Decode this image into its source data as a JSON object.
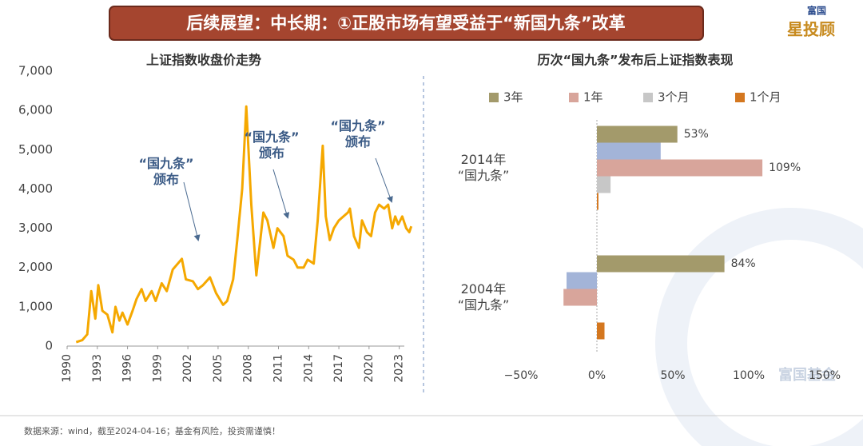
{
  "header": {
    "title": "后续展望：中长期：①正股市场有望受益于“新国九条”改革"
  },
  "logo": {
    "top": "富国",
    "main": "星投顾",
    "watermark": "富国基金"
  },
  "footer": "数据来源：wind，截至2024-04-16；基金有风险，投资需谨慎！",
  "chart_data": [
    {
      "type": "line",
      "title": "上证指数收盘价走势",
      "color": "#f5a800",
      "x": [
        1990.9,
        1991.5,
        1992.0,
        1992.4,
        1992.8,
        1993.1,
        1993.5,
        1994.0,
        1994.5,
        1994.8,
        1995.2,
        1995.5,
        1996.0,
        1996.5,
        1996.9,
        1997.4,
        1997.8,
        1998.4,
        1998.8,
        1999.4,
        1999.9,
        2000.5,
        2001.4,
        2001.8,
        2002.5,
        2003.0,
        2003.5,
        2004.2,
        2004.8,
        2005.5,
        2005.9,
        2006.5,
        2006.9,
        2007.4,
        2007.8,
        2008.3,
        2008.8,
        2009.5,
        2009.9,
        2010.5,
        2010.9,
        2011.5,
        2011.9,
        2012.5,
        2012.9,
        2013.5,
        2013.9,
        2014.5,
        2014.9,
        2015.4,
        2015.7,
        2016.1,
        2016.5,
        2017.0,
        2017.9,
        2018.1,
        2018.5,
        2019.0,
        2019.3,
        2019.8,
        2020.2,
        2020.6,
        2021.0,
        2021.5,
        2021.9,
        2022.3,
        2022.6,
        2022.9,
        2023.3,
        2023.7,
        2024.0,
        2024.2
      ],
      "values": [
        100,
        150,
        300,
        1400,
        700,
        1550,
        900,
        800,
        350,
        1000,
        650,
        850,
        550,
        900,
        1200,
        1450,
        1150,
        1400,
        1150,
        1600,
        1400,
        1950,
        2220,
        1700,
        1650,
        1450,
        1550,
        1750,
        1350,
        1050,
        1150,
        1700,
        2700,
        4000,
        6100,
        3600,
        1800,
        3400,
        3200,
        2500,
        3000,
        2800,
        2300,
        2200,
        2000,
        2000,
        2200,
        2100,
        3200,
        5100,
        3300,
        2700,
        3000,
        3200,
        3400,
        3500,
        2800,
        2500,
        3200,
        2900,
        2800,
        3400,
        3600,
        3500,
        3600,
        3000,
        3300,
        3100,
        3300,
        3000,
        2900,
        3050
      ],
      "xlim": [
        1990,
        2024.3
      ],
      "xticks": [
        1990,
        1993,
        1996,
        1999,
        2002,
        2005,
        2008,
        2011,
        2014,
        2017,
        2020,
        2023
      ],
      "ylim": [
        0,
        7000
      ],
      "yticks": [
        0,
        {
          "value": 1000,
          "label": "1,000"
        },
        {
          "value": 2000,
          "label": "2,000"
        },
        {
          "value": 3000,
          "label": "3,000"
        },
        {
          "value": 4000,
          "label": "4,000"
        },
        {
          "value": 5000,
          "label": "5,000"
        },
        {
          "value": 6000,
          "label": "6,000"
        },
        {
          "value": 7000,
          "label": "7,000"
        }
      ],
      "annotations": [
        "“国九条”\n颁布",
        "“国九条”\n颁布",
        "“国九条”\n颁布"
      ]
    },
    {
      "type": "hbar",
      "title": "历次“国九条”发布后上证指数表现",
      "categories": [
        "2014年\n“国九条”",
        "2004年\n“国九条”"
      ],
      "series": [
        {
          "name": "3年",
          "color": "#a39a6b",
          "values": [
            53,
            84
          ],
          "value_labels": [
            "53%",
            "84%"
          ]
        },
        {
          "color": "#a3b4d8",
          "values": [
            42,
            -20
          ]
        },
        {
          "name": "1年",
          "color": "#d8a59b",
          "values": [
            109,
            -22
          ],
          "value_labels": [
            "109%",
            null
          ]
        },
        {
          "name": "3个月",
          "color": "#c7c7c7",
          "values": [
            9,
            0
          ]
        },
        {
          "name": "1个月",
          "color": "#d4771f",
          "values": [
            1,
            5
          ]
        }
      ],
      "xlim": [
        -60,
        160
      ],
      "xticks": [
        {
          "value": -50,
          "label": "−50%"
        },
        {
          "value": 0,
          "label": "0%"
        },
        {
          "value": 50,
          "label": "50%"
        },
        {
          "value": 100,
          "label": "100%"
        },
        {
          "value": 150,
          "label": "150%"
        }
      ]
    }
  ]
}
